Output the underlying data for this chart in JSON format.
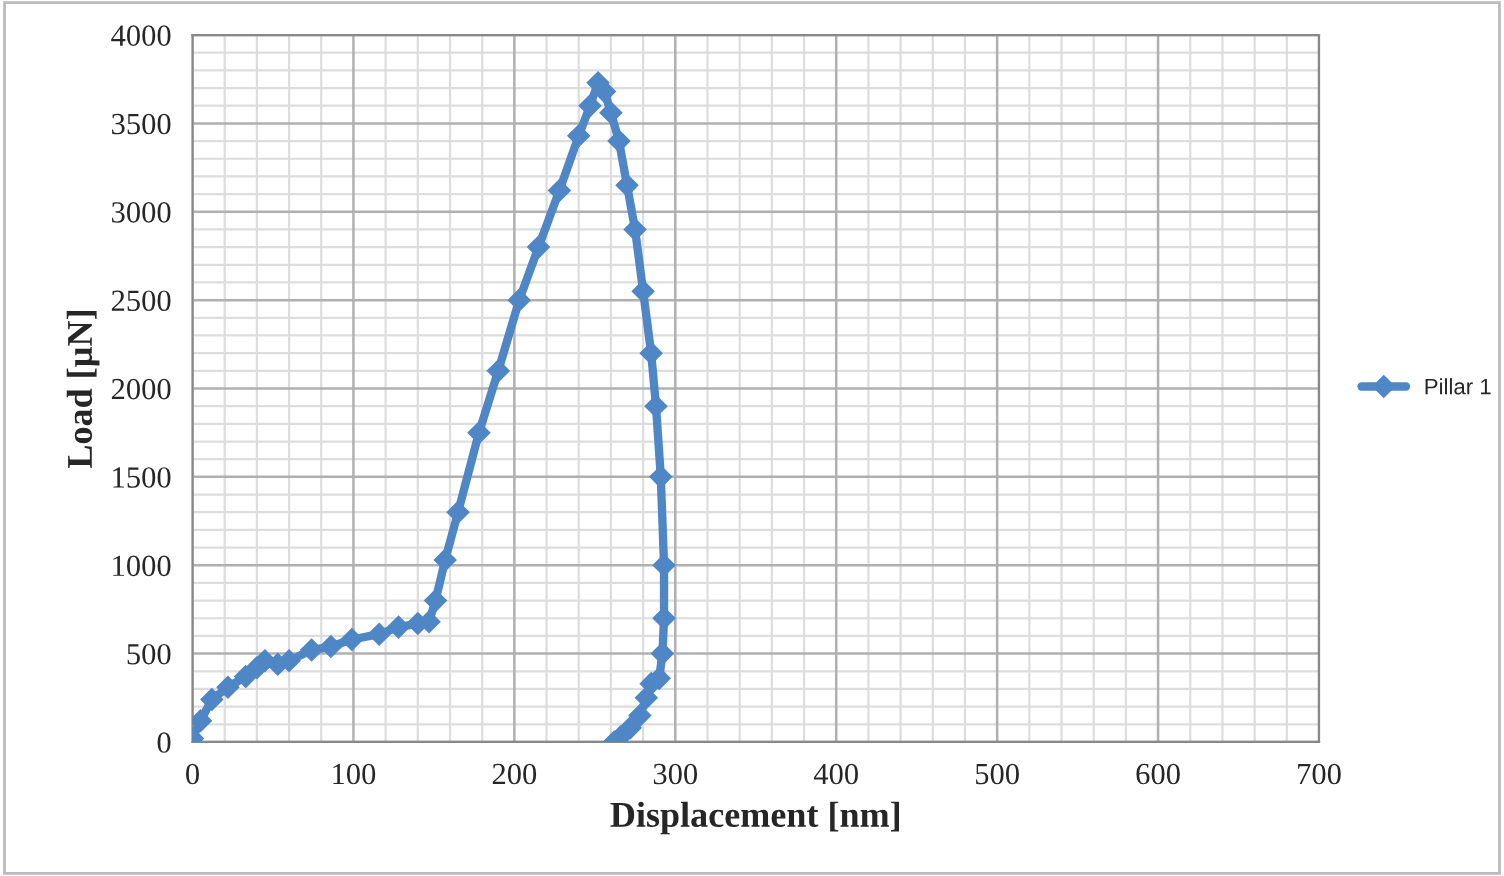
{
  "chart_data": {
    "type": "line",
    "xlabel": "Displacement [nm]",
    "ylabel": "Load [µN]",
    "xlim": [
      0,
      700
    ],
    "ylim": [
      0,
      4000
    ],
    "xticks": [
      0,
      100,
      200,
      300,
      400,
      500,
      600,
      700
    ],
    "yticks": [
      0,
      500,
      1000,
      1500,
      2000,
      2500,
      3000,
      3500,
      4000
    ],
    "grid": true,
    "legend": "right",
    "marker": "diamond",
    "line_style": "solid",
    "series": [
      {
        "name": "Pillar 1",
        "color": "#4f86c6",
        "x": [
          0,
          5,
          12,
          22,
          33,
          40,
          45,
          53,
          60,
          74,
          86,
          99,
          116,
          128,
          140,
          147,
          151,
          157,
          165,
          178,
          190,
          203,
          215,
          228,
          240,
          247,
          252,
          256,
          260,
          265,
          270,
          275,
          280,
          285,
          288,
          291,
          293,
          293,
          292,
          290,
          285,
          282,
          278,
          272,
          266,
          262
        ],
        "values": [
          20,
          120,
          240,
          310,
          370,
          420,
          460,
          440,
          460,
          520,
          540,
          580,
          610,
          650,
          670,
          680,
          800,
          1030,
          1300,
          1750,
          2100,
          2500,
          2800,
          3120,
          3430,
          3600,
          3730,
          3680,
          3560,
          3400,
          3150,
          2900,
          2550,
          2200,
          1900,
          1500,
          1000,
          700,
          500,
          360,
          330,
          250,
          150,
          80,
          30,
          0
        ]
      }
    ]
  }
}
